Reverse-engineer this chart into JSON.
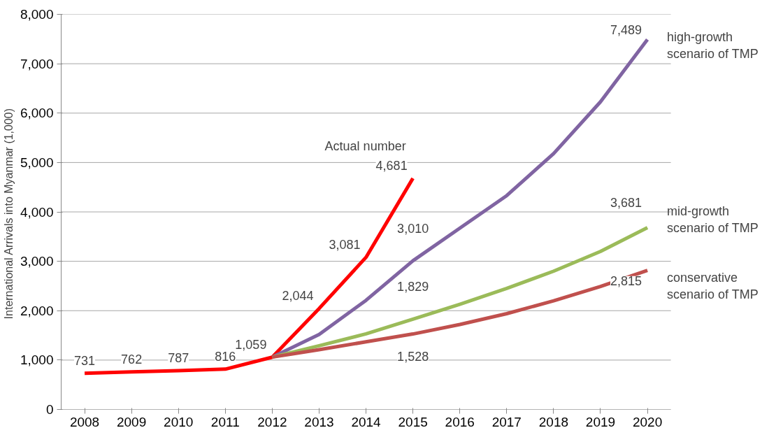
{
  "chart_data": {
    "type": "line",
    "ylabel": "International  Arrivals into Myanmar (1,000)",
    "categories": [
      "2008",
      "2009",
      "2010",
      "2011",
      "2012",
      "2013",
      "2014",
      "2015",
      "2016",
      "2017",
      "2018",
      "2019",
      "2020"
    ],
    "ylim": [
      0,
      8000
    ],
    "yticks": [
      0,
      {
        "value": 1000,
        "label": "1,000"
      },
      {
        "value": 2000,
        "label": "2,000"
      },
      {
        "value": 3000,
        "label": "3,000"
      },
      {
        "value": 4000,
        "label": "4,000"
      },
      {
        "value": 5000,
        "label": "5,000"
      },
      {
        "value": 6000,
        "label": "6,000"
      },
      {
        "value": 7000,
        "label": "7,000"
      },
      {
        "value": 8000,
        "label": "8,000"
      }
    ],
    "grid": "y",
    "legend": false,
    "marker": "none",
    "line_style": "solid",
    "series": [
      {
        "name": "Actual number",
        "color": "#ff0000",
        "values": [
          731,
          762,
          787,
          816,
          1059,
          2044,
          3081,
          4681,
          null,
          null,
          null,
          null,
          null
        ],
        "value_labels": [
          "731",
          "762",
          "787",
          "816",
          "1,059",
          "2,044",
          "3,081",
          "4,681",
          null,
          null,
          null,
          null,
          null
        ]
      },
      {
        "name": "high-growth scenario of TMP",
        "color": "#8064a2",
        "values": [
          null,
          null,
          null,
          null,
          1060,
          1520,
          2210,
          3010,
          3670,
          4330,
          5180,
          6230,
          7489
        ],
        "value_labels": [
          null,
          null,
          null,
          null,
          null,
          null,
          null,
          "3,010",
          null,
          null,
          null,
          null,
          "7,489"
        ]
      },
      {
        "name": "mid-growth scenario of TMP",
        "color": "#9bbb59",
        "values": [
          null,
          null,
          null,
          null,
          1060,
          1290,
          1530,
          1829,
          2130,
          2450,
          2800,
          3200,
          3681
        ],
        "value_labels": [
          null,
          null,
          null,
          null,
          null,
          null,
          null,
          "1,829",
          null,
          null,
          null,
          null,
          "3,681"
        ]
      },
      {
        "name": "conservative scenario of TMP",
        "color": "#c0504d",
        "values": [
          null,
          null,
          null,
          null,
          1060,
          1210,
          1370,
          1528,
          1720,
          1940,
          2200,
          2490,
          2815
        ],
        "value_labels": [
          null,
          null,
          null,
          null,
          null,
          null,
          null,
          "1,528",
          null,
          null,
          null,
          null,
          "2,815"
        ]
      }
    ]
  }
}
